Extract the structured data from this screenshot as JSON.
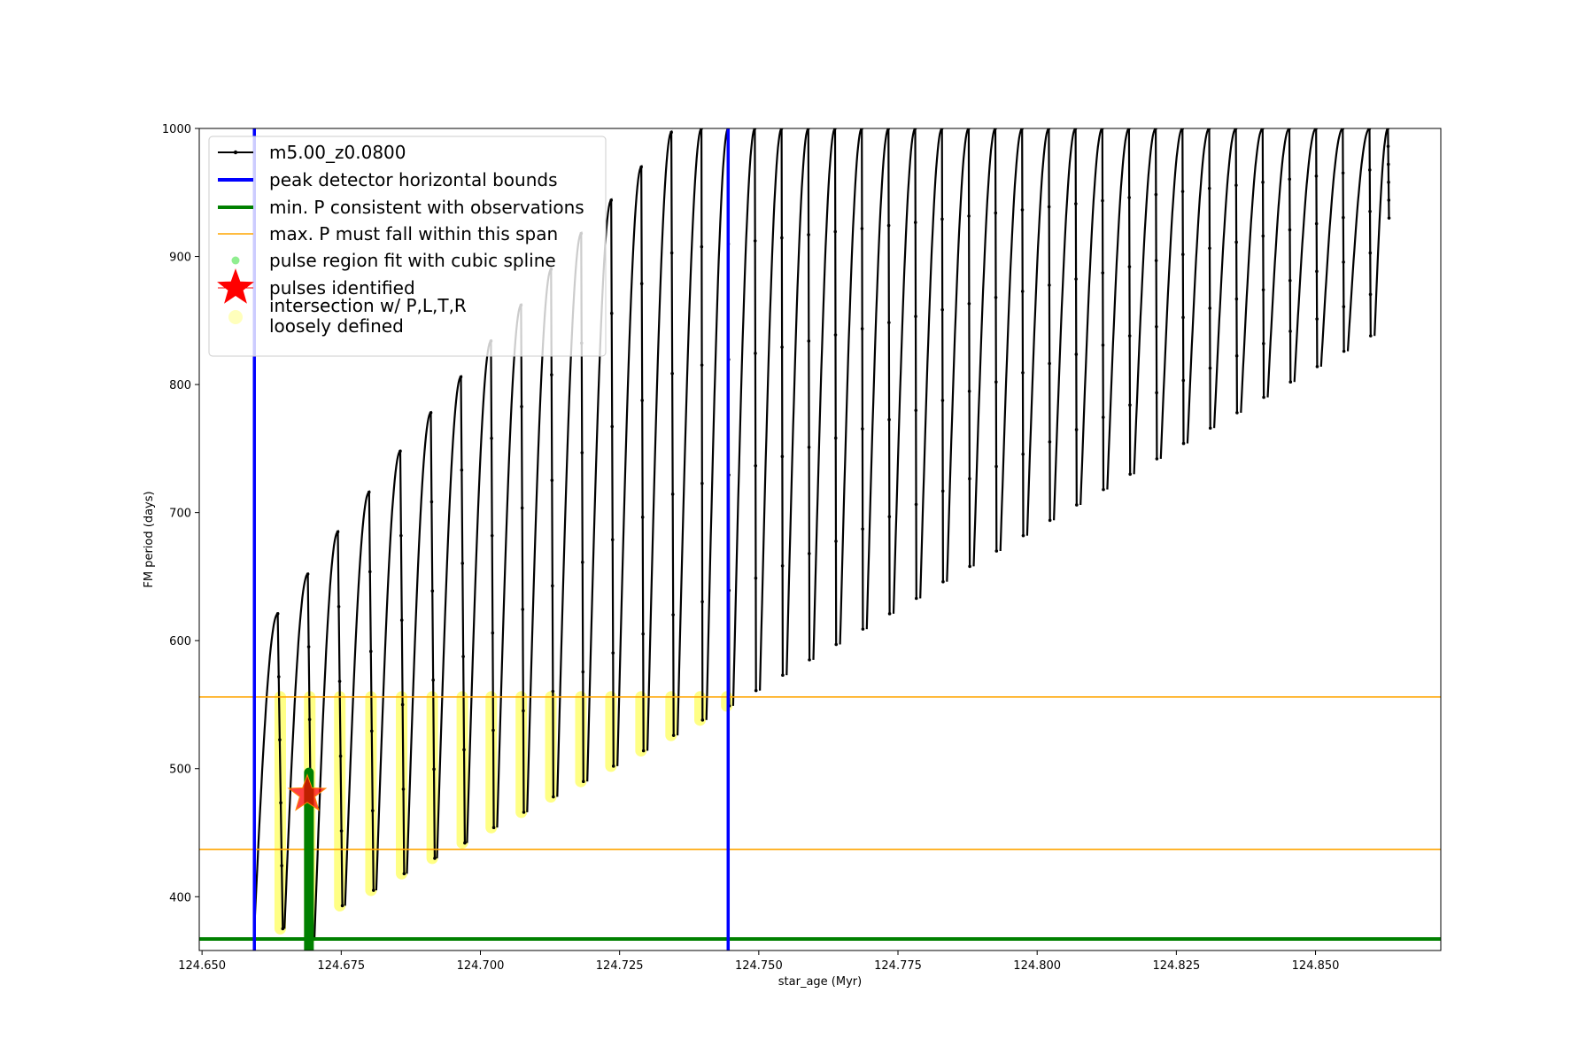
{
  "chart_data": {
    "type": "line",
    "xlabel": "star_age (Myr)",
    "ylabel": "FM period (days)",
    "xlim": [
      124.6495,
      124.8725
    ],
    "ylim": [
      358,
      1000
    ],
    "xticks": [
      "124.650",
      "124.675",
      "124.700",
      "124.725",
      "124.750",
      "124.775",
      "124.800",
      "124.825",
      "124.850"
    ],
    "xtick_values": [
      124.65,
      124.675,
      124.7,
      124.725,
      124.75,
      124.775,
      124.8,
      124.825,
      124.85
    ],
    "yticks": [
      "400",
      "500",
      "600",
      "700",
      "800",
      "900",
      "1000"
    ],
    "ytick_values": [
      400,
      500,
      600,
      700,
      800,
      900,
      1000
    ],
    "grid": false,
    "legend_position": "top-left",
    "legend": [
      {
        "label": "m5.00_z0.0800",
        "marker": "line-dot",
        "color": "#000000"
      },
      {
        "label": "peak detector horizontal bounds",
        "marker": "line",
        "color": "#0000ff"
      },
      {
        "label": "min. P consistent with observations",
        "marker": "line",
        "color": "#008000"
      },
      {
        "label": "max. P must fall within this span",
        "marker": "thin-line",
        "color": "#ffa500"
      },
      {
        "label": "pulse region fit with cubic spline",
        "marker": "dot",
        "color": "#90ee90"
      },
      {
        "label": "pulses identified",
        "marker": "star",
        "color": "#ff0000"
      },
      {
        "label_lines": [
          "intersection w/ P,L,T,R",
          "loosely defined"
        ],
        "marker": "circle",
        "color": "#ffffa0"
      }
    ],
    "vertical_lines": [
      {
        "name": "peak detector horizontal bounds",
        "x": 124.6594,
        "color": "#0000ff"
      },
      {
        "name": "peak detector horizontal bounds",
        "x": 124.7445,
        "color": "#0000ff"
      }
    ],
    "horizontal_lines": [
      {
        "name": "min. P consistent with observations",
        "y": 367,
        "color": "#008000"
      },
      {
        "name": "max. P must fall within this span",
        "y": 556,
        "color": "#ffa500"
      },
      {
        "name": "max. P must fall within this span",
        "y": 437,
        "color": "#ffa500"
      }
    ],
    "series": [
      {
        "name": "m5.00_z0.0800",
        "color": "#000000",
        "pulses": [
          {
            "start": 124.6594,
            "peak_x": 124.6636,
            "peak_y": 621,
            "end": 124.6645,
            "min_y": 375
          },
          {
            "start": 124.6648,
            "peak_x": 124.669,
            "peak_y": 652,
            "end": 124.6698,
            "min_y": 368
          },
          {
            "start": 124.6702,
            "peak_x": 124.6744,
            "peak_y": 685,
            "end": 124.6752,
            "min_y": 393
          },
          {
            "start": 124.6757,
            "peak_x": 124.68,
            "peak_y": 716,
            "end": 124.6808,
            "min_y": 405
          },
          {
            "start": 124.6813,
            "peak_x": 124.6856,
            "peak_y": 748,
            "end": 124.6863,
            "min_y": 418
          },
          {
            "start": 124.6868,
            "peak_x": 124.6911,
            "peak_y": 778,
            "end": 124.6918,
            "min_y": 430
          },
          {
            "start": 124.6922,
            "peak_x": 124.6965,
            "peak_y": 806,
            "end": 124.6972,
            "min_y": 442
          },
          {
            "start": 124.6976,
            "peak_x": 124.7019,
            "peak_y": 834,
            "end": 124.7024,
            "min_y": 454
          },
          {
            "start": 124.703,
            "peak_x": 124.7073,
            "peak_y": 862,
            "end": 124.7078,
            "min_y": 466
          },
          {
            "start": 124.7084,
            "peak_x": 124.7127,
            "peak_y": 890,
            "end": 124.7131,
            "min_y": 478
          },
          {
            "start": 124.7138,
            "peak_x": 124.7181,
            "peak_y": 918,
            "end": 124.7185,
            "min_y": 490
          },
          {
            "start": 124.7192,
            "peak_x": 124.7235,
            "peak_y": 944,
            "end": 124.7239,
            "min_y": 502
          },
          {
            "start": 124.7246,
            "peak_x": 124.7289,
            "peak_y": 970,
            "end": 124.7293,
            "min_y": 514
          },
          {
            "start": 124.73,
            "peak_x": 124.7343,
            "peak_y": 997,
            "end": 124.7347,
            "min_y": 526
          },
          {
            "start": 124.7354,
            "peak_x": 124.7397,
            "peak_y": 1000,
            "end": 124.7399,
            "min_y": 538
          },
          {
            "start": 124.7406,
            "peak_x": 124.7445,
            "peak_y": 1000,
            "end": 124.7447,
            "min_y": 549
          },
          {
            "start": 124.7454,
            "peak_x": 124.7493,
            "peak_y": 1000,
            "end": 124.7495,
            "min_y": 561
          },
          {
            "start": 124.7502,
            "peak_x": 124.7541,
            "peak_y": 1000,
            "end": 124.7543,
            "min_y": 573
          },
          {
            "start": 124.755,
            "peak_x": 124.7589,
            "peak_y": 1000,
            "end": 124.7591,
            "min_y": 585
          },
          {
            "start": 124.7598,
            "peak_x": 124.7637,
            "peak_y": 1000,
            "end": 124.7639,
            "min_y": 597
          },
          {
            "start": 124.7646,
            "peak_x": 124.7685,
            "peak_y": 1000,
            "end": 124.7687,
            "min_y": 609
          },
          {
            "start": 124.7694,
            "peak_x": 124.7733,
            "peak_y": 1000,
            "end": 124.7735,
            "min_y": 621
          },
          {
            "start": 124.7742,
            "peak_x": 124.7781,
            "peak_y": 1000,
            "end": 124.7783,
            "min_y": 633
          },
          {
            "start": 124.779,
            "peak_x": 124.7829,
            "peak_y": 1000,
            "end": 124.7831,
            "min_y": 646
          },
          {
            "start": 124.7838,
            "peak_x": 124.7877,
            "peak_y": 1000,
            "end": 124.7879,
            "min_y": 658
          },
          {
            "start": 124.7886,
            "peak_x": 124.7925,
            "peak_y": 1000,
            "end": 124.7927,
            "min_y": 670
          },
          {
            "start": 124.7934,
            "peak_x": 124.7973,
            "peak_y": 1000,
            "end": 124.7975,
            "min_y": 682
          },
          {
            "start": 124.7982,
            "peak_x": 124.8021,
            "peak_y": 1000,
            "end": 124.8023,
            "min_y": 694
          },
          {
            "start": 124.803,
            "peak_x": 124.8069,
            "peak_y": 1000,
            "end": 124.8071,
            "min_y": 706
          },
          {
            "start": 124.8078,
            "peak_x": 124.8117,
            "peak_y": 1000,
            "end": 124.8119,
            "min_y": 718
          },
          {
            "start": 124.8126,
            "peak_x": 124.8165,
            "peak_y": 1000,
            "end": 124.8167,
            "min_y": 730
          },
          {
            "start": 124.8174,
            "peak_x": 124.8213,
            "peak_y": 1000,
            "end": 124.8215,
            "min_y": 742
          },
          {
            "start": 124.8222,
            "peak_x": 124.8261,
            "peak_y": 1000,
            "end": 124.8263,
            "min_y": 754
          },
          {
            "start": 124.827,
            "peak_x": 124.8309,
            "peak_y": 1000,
            "end": 124.8311,
            "min_y": 766
          },
          {
            "start": 124.8318,
            "peak_x": 124.8357,
            "peak_y": 1000,
            "end": 124.8359,
            "min_y": 778
          },
          {
            "start": 124.8366,
            "peak_x": 124.8405,
            "peak_y": 1000,
            "end": 124.8407,
            "min_y": 790
          },
          {
            "start": 124.8414,
            "peak_x": 124.8453,
            "peak_y": 1000,
            "end": 124.8455,
            "min_y": 802
          },
          {
            "start": 124.8462,
            "peak_x": 124.8501,
            "peak_y": 1000,
            "end": 124.8503,
            "min_y": 814
          },
          {
            "start": 124.851,
            "peak_x": 124.8549,
            "peak_y": 1000,
            "end": 124.8551,
            "min_y": 826
          },
          {
            "start": 124.8558,
            "peak_x": 124.8597,
            "peak_y": 1000,
            "end": 124.8599,
            "min_y": 838
          },
          {
            "start": 124.8606,
            "peak_x": 124.863,
            "peak_y": 1000,
            "end": 124.8632,
            "min_y": 930
          }
        ]
      },
      {
        "name": "pulse region fit with cubic spline",
        "color": "#008000",
        "x": 124.6692,
        "y_range": [
          358,
          497
        ]
      },
      {
        "name": "pulses identified",
        "color": "#ff0000",
        "points": [
          {
            "x": 124.6689,
            "y": 480
          }
        ]
      }
    ]
  }
}
